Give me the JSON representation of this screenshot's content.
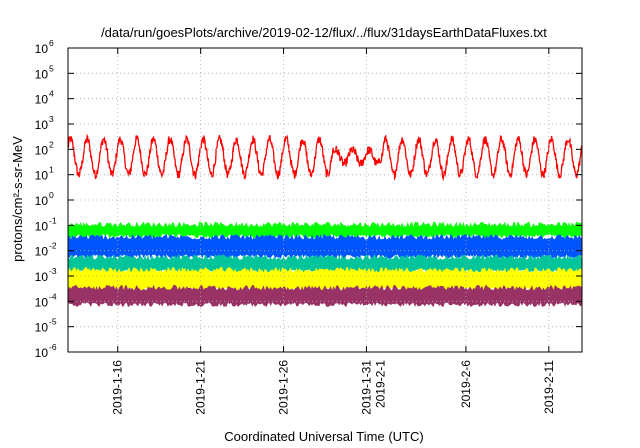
{
  "chart_data": {
    "type": "line",
    "title": "/data/run/goesPlots/archive/2019-02-12/flux/../flux/31daysEarthDataFluxes.txt",
    "xlabel": "Coordinated Universal Time (UTC)",
    "ylabel": "protons/cm²-s-sr-MeV",
    "yscale": "log",
    "ylim_exponents": [
      -6,
      6
    ],
    "y_ticks": [
      {
        "mantissa": "10",
        "exp": "-6"
      },
      {
        "mantissa": "10",
        "exp": "-5"
      },
      {
        "mantissa": "10",
        "exp": "-4"
      },
      {
        "mantissa": "10",
        "exp": "-3"
      },
      {
        "mantissa": "10",
        "exp": "-2"
      },
      {
        "mantissa": "10",
        "exp": "-1"
      },
      {
        "mantissa": "10",
        "exp": "0"
      },
      {
        "mantissa": "10",
        "exp": "1"
      },
      {
        "mantissa": "10",
        "exp": "2"
      },
      {
        "mantissa": "10",
        "exp": "3"
      },
      {
        "mantissa": "10",
        "exp": "4"
      },
      {
        "mantissa": "10",
        "exp": "5"
      },
      {
        "mantissa": "10",
        "exp": "6"
      }
    ],
    "xlim": [
      "2019-01-13",
      "2019-02-13"
    ],
    "x_ticks": [
      {
        "date": "2019-01-16",
        "label": [
          "2019-1-16"
        ]
      },
      {
        "date": "2019-01-21",
        "label": [
          "2019-1-21"
        ]
      },
      {
        "date": "2019-01-26",
        "label": [
          "2019-1-26"
        ]
      },
      {
        "date": "2019-01-31",
        "label": [
          "2019-1-31",
          "2019-2-1"
        ]
      },
      {
        "date": "2019-02-06",
        "label": [
          "2019-2-6"
        ]
      },
      {
        "date": "2019-02-11",
        "label": [
          "2019-2-11"
        ]
      }
    ],
    "grid": true,
    "legend": "none",
    "series": [
      {
        "color": "#ff0000",
        "style": "line",
        "log10_center": 1.7,
        "log10_amplitude": 0.7,
        "period_days": 1
      },
      {
        "color": "#00ff00",
        "style": "band",
        "log10_low": -1.4,
        "log10_high": -1.0
      },
      {
        "color": "#0055ff",
        "style": "band",
        "log10_low": -2.2,
        "log10_high": -1.5
      },
      {
        "color": "#00c49a",
        "style": "band",
        "log10_low": -2.8,
        "log10_high": -2.3
      },
      {
        "color": "#ffff00",
        "style": "band",
        "log10_low": -3.5,
        "log10_high": -2.8
      },
      {
        "color": "#993366",
        "style": "band",
        "log10_low": -4.1,
        "log10_high": -3.5
      }
    ]
  }
}
